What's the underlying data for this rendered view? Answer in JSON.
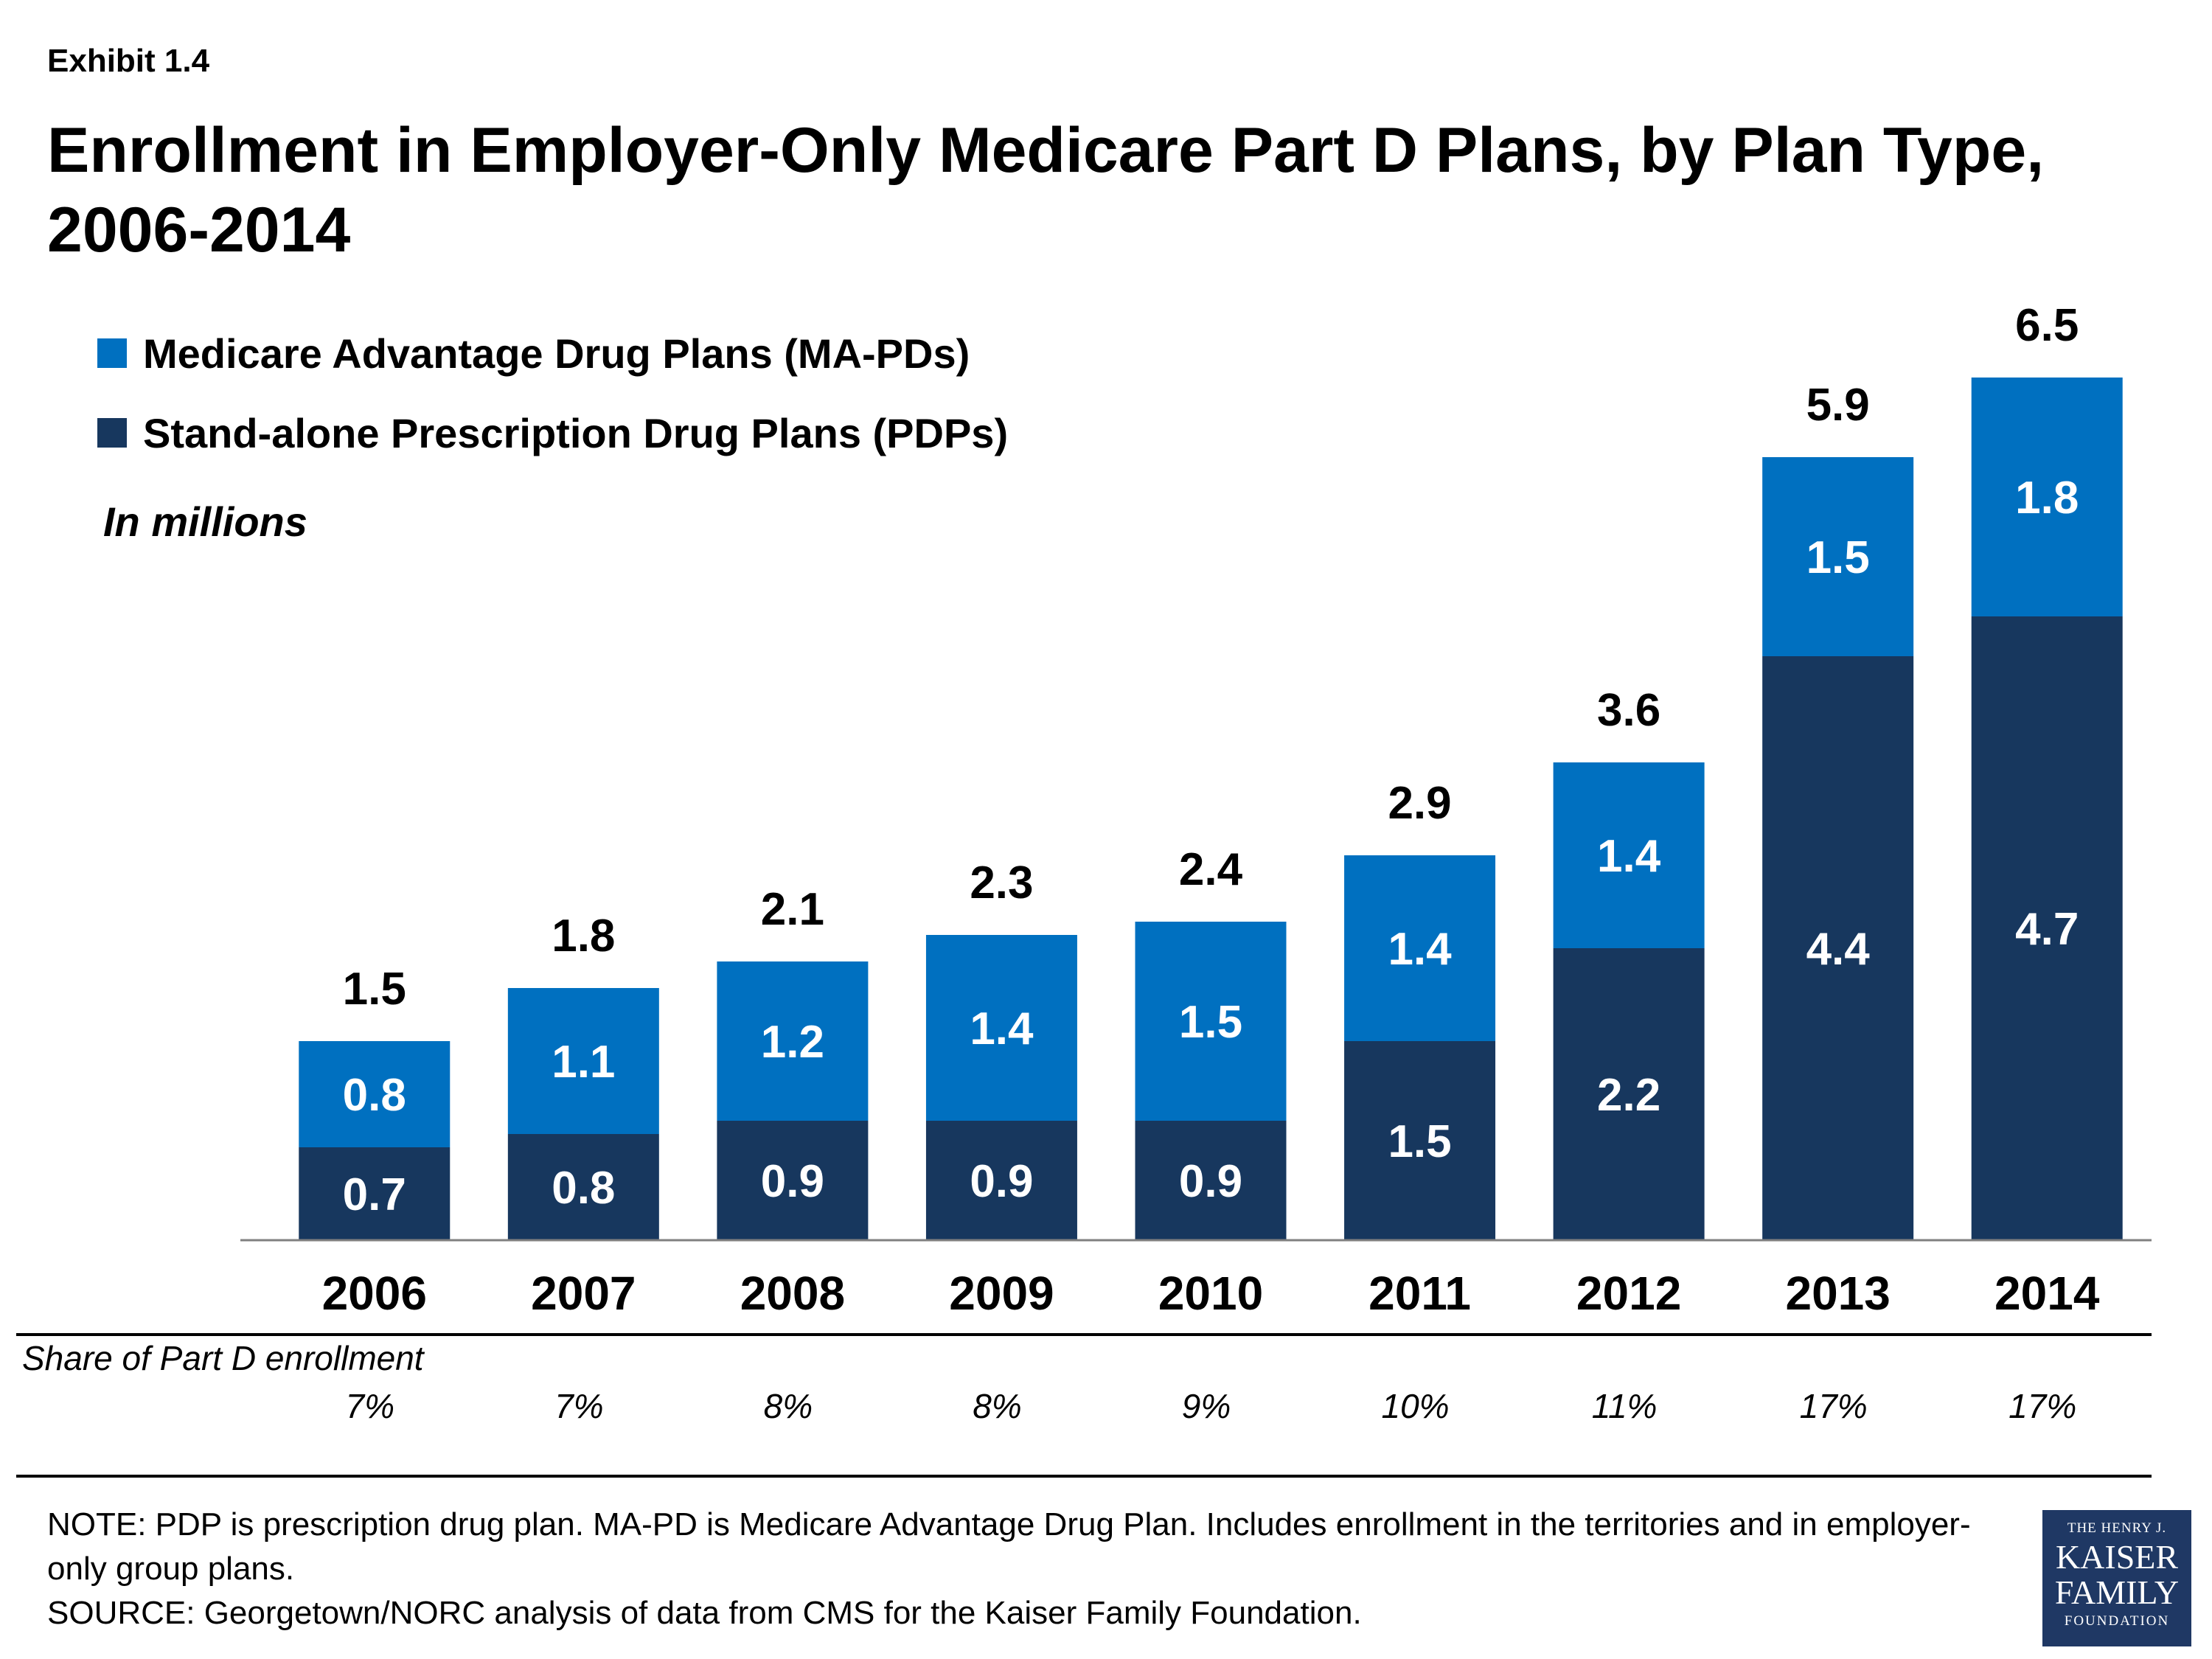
{
  "header": {
    "exhibit": "Exhibit 1.4",
    "title": "Enrollment in Employer-Only Medicare Part D Plans, by Plan Type, 2006-2014"
  },
  "legend": [
    {
      "label": "Medicare Advantage Drug Plans (MA-PDs)",
      "color": "#0070c0"
    },
    {
      "label": "Stand-alone Prescription Drug Plans (PDPs)",
      "color": "#17375e"
    }
  ],
  "unit_note": "In millions",
  "chart_data": {
    "type": "bar",
    "stacked": true,
    "categories": [
      "2006",
      "2007",
      "2008",
      "2009",
      "2010",
      "2011",
      "2012",
      "2013",
      "2014"
    ],
    "series": [
      {
        "name": "Stand-alone Prescription Drug Plans (PDPs)",
        "color": "#17375e",
        "values": [
          0.7,
          0.8,
          0.9,
          0.9,
          0.9,
          1.5,
          2.2,
          4.4,
          4.7
        ]
      },
      {
        "name": "Medicare Advantage Drug Plans (MA-PDs)",
        "color": "#0070c0",
        "values": [
          0.8,
          1.1,
          1.2,
          1.4,
          1.5,
          1.4,
          1.4,
          1.5,
          1.8
        ]
      }
    ],
    "totals": [
      1.5,
      1.8,
      2.1,
      2.3,
      2.4,
      2.9,
      3.6,
      5.9,
      6.5
    ],
    "ylim": [
      0,
      6.5
    ],
    "grid": false,
    "legend_position": "top-left"
  },
  "share": {
    "label": "Share of Part D enrollment",
    "values": [
      "7%",
      "7%",
      "8%",
      "8%",
      "9%",
      "10%",
      "11%",
      "17%",
      "17%"
    ]
  },
  "notes": {
    "note": "NOTE: PDP is prescription drug plan. MA-PD is Medicare Advantage Drug Plan. Includes enrollment in the territories and in employer-only group plans.",
    "source": "SOURCE: Georgetown/NORC analysis of data from CMS for the Kaiser Family Foundation."
  },
  "logo": {
    "line1": "THE HENRY J.",
    "line2": "KAISER",
    "line3": "FAMILY",
    "line4": "FOUNDATION"
  }
}
